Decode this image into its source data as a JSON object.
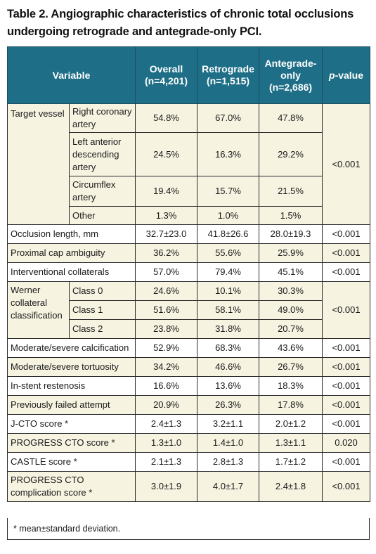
{
  "title": "Table 2. Angiographic characteristics of chronic total occlusions undergoing retrograde and antegrade-only PCI.",
  "headers": {
    "variable": "Variable",
    "overall": "Overall",
    "overall_n": "(n=4,201)",
    "retro": "Retrograde",
    "retro_n": "(n=1,515)",
    "ante": "Antegrade-",
    "ante2": "only",
    "ante_n": "(n=2,686)",
    "pvalue_p": "p",
    "pvalue_rest": "-value"
  },
  "rows": {
    "target_vessel": {
      "label": "Target vessel",
      "p": "<0.001",
      "subs": [
        {
          "label": "Right coronary artery",
          "overall": "54.8%",
          "retro": "67.0%",
          "ante": "47.8%"
        },
        {
          "label": "Left anterior descending artery",
          "overall": "24.5%",
          "retro": "16.3%",
          "ante": "29.2%"
        },
        {
          "label": "Circumflex artery",
          "overall": "19.4%",
          "retro": "15.7%",
          "ante": "21.5%"
        },
        {
          "label": "Other",
          "overall": "1.3%",
          "retro": "1.0%",
          "ante": "1.5%"
        }
      ]
    },
    "occlusion_length": {
      "label": "Occlusion length, mm",
      "overall": "32.7±23.0",
      "retro": "41.8±26.6",
      "ante": "28.0±19.3",
      "p": "<0.001"
    },
    "proximal_cap": {
      "label": "Proximal cap ambiguity",
      "overall": "36.2%",
      "retro": "55.6%",
      "ante": "25.9%",
      "p": "<0.001"
    },
    "interventional": {
      "label": "Interventional collaterals",
      "overall": "57.0%",
      "retro": "79.4%",
      "ante": "45.1%",
      "p": "<0.001"
    },
    "werner": {
      "label": "Werner collateral classification",
      "p": "<0.001",
      "subs": [
        {
          "label": "Class 0",
          "overall": "24.6%",
          "retro": "10.1%",
          "ante": "30.3%"
        },
        {
          "label": "Class 1",
          "overall": "51.6%",
          "retro": "58.1%",
          "ante": "49.0%"
        },
        {
          "label": "Class 2",
          "overall": "23.8%",
          "retro": "31.8%",
          "ante": "20.7%"
        }
      ]
    },
    "calcification": {
      "label": "Moderate/severe calcification",
      "overall": "52.9%",
      "retro": "68.3%",
      "ante": "43.6%",
      "p": "<0.001"
    },
    "tortuosity": {
      "label": "Moderate/severe tortuosity",
      "overall": "34.2%",
      "retro": "46.6%",
      "ante": "26.7%",
      "p": "<0.001"
    },
    "restenosis": {
      "label": "In-stent restenosis",
      "overall": "16.6%",
      "retro": "13.6%",
      "ante": "18.3%",
      "p": "<0.001"
    },
    "failed_attempt": {
      "label": "Previously failed attempt",
      "overall": "20.9%",
      "retro": "26.3%",
      "ante": "17.8%",
      "p": "<0.001"
    },
    "jcto": {
      "label": "J-CTO score *",
      "overall": "2.4±1.3",
      "retro": "3.2±1.1",
      "ante": "2.0±1.2",
      "p": "<0.001"
    },
    "progress": {
      "label": "PROGRESS CTO score *",
      "overall": "1.3±1.0",
      "retro": "1.4±1.0",
      "ante": "1.3±1.1",
      "p": "0.020"
    },
    "castle": {
      "label": "CASTLE score *",
      "overall": "2.1±1.3",
      "retro": "2.8±1.3",
      "ante": "1.7±1.2",
      "p": "<0.001"
    },
    "complication": {
      "label": "PROGRESS CTO complication score *",
      "overall": "3.0±1.9",
      "retro": "4.0±1.7",
      "ante": "2.4±1.8",
      "p": "<0.001"
    }
  },
  "footnote": "* mean±standard deviation.",
  "colors": {
    "header_bg": "#1d6e86",
    "tint_bg": "#f6f3e1"
  }
}
